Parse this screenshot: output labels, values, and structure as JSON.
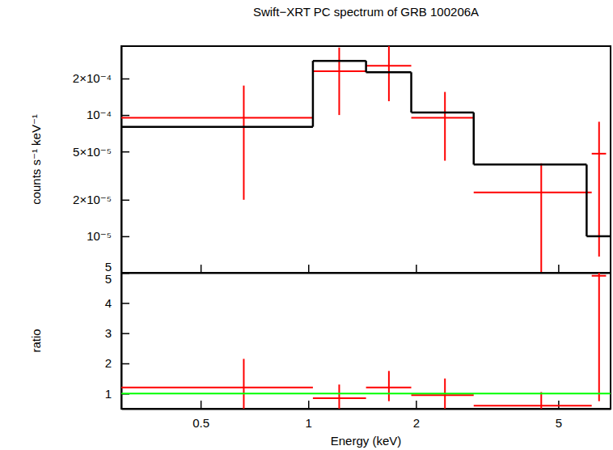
{
  "chart_data": [
    {
      "type": "scatter",
      "title": "Swift−XRT PC spectrum of GRB 100206A",
      "y_label": "counts s⁻¹ keV⁻¹",
      "log": true,
      "tick_labels": "y",
      "xlim": [
        0.3,
        7.0
      ],
      "ylim": [
        5e-06,
        0.00037
      ],
      "xticks": [
        0.5,
        1,
        2,
        5
      ],
      "yticks": [
        {
          "value": 0.0002,
          "label": "2×10⁻⁴"
        },
        {
          "value": 0.0001,
          "label": "10⁻⁴"
        },
        {
          "value": 5e-05,
          "label": "5×10⁻⁵"
        },
        {
          "value": 2e-05,
          "label": "2×10⁻⁵"
        },
        {
          "value": 1e-05,
          "label": "10⁻⁵"
        },
        {
          "value": 5e-06,
          "label": "5"
        }
      ],
      "series": [
        {
          "type": "scatter",
          "marker": "cross",
          "color": "#ff0000",
          "x": [
            0.66,
            1.22,
            1.68,
            2.41,
            4.48,
            6.5
          ],
          "x_lower": [
            0.3,
            1.03,
            1.45,
            1.94,
            2.9,
            6.2
          ],
          "x_upper": [
            1.03,
            1.45,
            1.94,
            2.9,
            6.2,
            6.8
          ],
          "values": [
            9.5e-05,
            0.00023,
            0.000255,
            9.5e-05,
            2.3e-05,
            4.8e-05
          ],
          "y_lower": [
            2e-05,
            0.0001,
            0.00013,
            4.2e-05,
            4e-06,
            6.8e-06
          ],
          "y_upper": [
            0.000175,
            0.00036,
            0.00037,
            0.000155,
            4e-05,
            8.8e-05
          ]
        },
        {
          "type": "step",
          "color": "#000000",
          "bins": [
            0.3,
            1.03,
            1.45,
            1.94,
            2.9,
            6.0,
            7.0
          ],
          "values": [
            8e-05,
            0.00028,
            0.000225,
            0.000105,
            3.9e-05,
            1e-05
          ]
        }
      ]
    },
    {
      "type": "scatter",
      "x_label": "Energy (keV)",
      "y_label": "ratio",
      "log": "x",
      "xlim": [
        0.3,
        7.0
      ],
      "ylim": [
        0.5,
        5
      ],
      "xticks": [
        0.5,
        1,
        2,
        5
      ],
      "yticks": [
        1,
        2,
        3,
        4,
        5
      ],
      "series": [
        {
          "type": "scatter",
          "marker": "cross",
          "color": "#ff0000",
          "x": [
            0.66,
            1.22,
            1.68,
            2.41,
            4.48,
            6.5
          ],
          "x_lower": [
            0.3,
            1.03,
            1.45,
            1.94,
            2.9,
            6.2
          ],
          "x_upper": [
            1.03,
            1.45,
            1.94,
            2.9,
            6.2,
            6.8
          ],
          "values": [
            1.2,
            0.85,
            1.2,
            0.95,
            0.6,
            4.9
          ],
          "y_lower": [
            0.2,
            0.45,
            0.75,
            0.45,
            0.0,
            0.75
          ],
          "y_upper": [
            2.15,
            1.3,
            1.75,
            1.5,
            1.05,
            6.5
          ]
        },
        {
          "type": "line",
          "color": "#00ff00",
          "x": [
            0.3,
            7.0
          ],
          "values": [
            1,
            1
          ]
        }
      ]
    }
  ]
}
